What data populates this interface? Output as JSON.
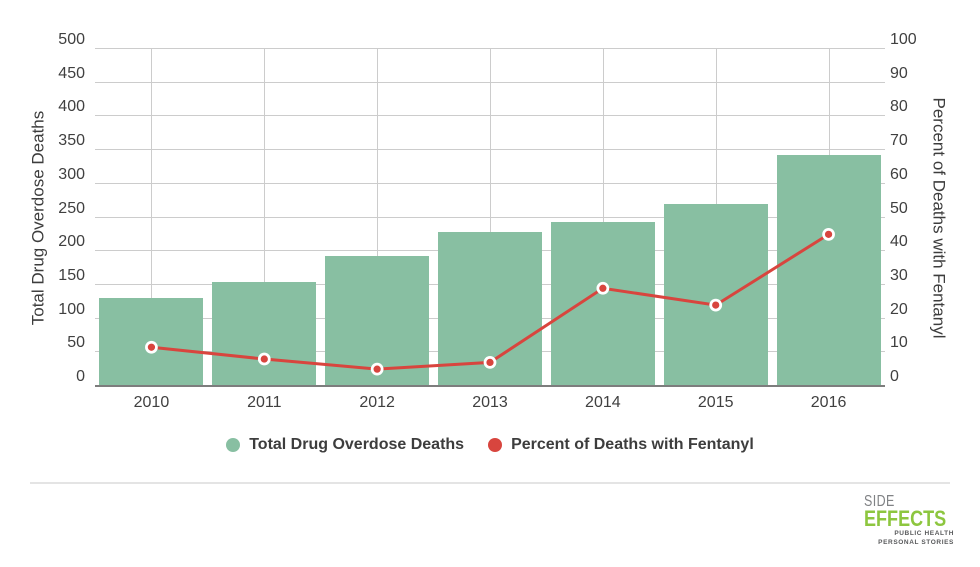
{
  "chart_data": {
    "type": "combo-bar-line",
    "categories": [
      "2010",
      "2011",
      "2012",
      "2013",
      "2014",
      "2015",
      "2016"
    ],
    "series": [
      {
        "name": "Total Drug Overdose Deaths",
        "type": "bar",
        "axis": "left",
        "color": "#88bfa2",
        "values": [
          130,
          155,
          193,
          229,
          244,
          270,
          343
        ]
      },
      {
        "name": "Percent of Deaths with Fentanyl",
        "type": "line",
        "axis": "right",
        "color": "#d8453e",
        "marker_stroke": "#ffffff",
        "values": [
          11.5,
          8,
          5,
          7,
          29,
          24,
          45
        ]
      }
    ],
    "left_axis": {
      "title": "Total Drug Overdose Deaths",
      "min": 0,
      "max": 500,
      "ticks": [
        0,
        50,
        100,
        150,
        200,
        250,
        300,
        350,
        400,
        450,
        500
      ]
    },
    "right_axis": {
      "title": "Percent of Deaths with Fentanyl",
      "min": 0,
      "max": 100,
      "ticks": [
        0,
        10,
        20,
        30,
        40,
        50,
        60,
        70,
        80,
        90,
        100
      ]
    },
    "grid": {
      "show": true,
      "color": "#cccccc",
      "baseline_color": "#7d7d7d"
    },
    "legend_position": "bottom",
    "text_color": "#404040"
  },
  "legend": {
    "items": [
      {
        "label": "Total Drug Overdose Deaths",
        "color": "#88bfa2"
      },
      {
        "label": "Percent of Deaths with Fentanyl",
        "color": "#d8453e"
      }
    ]
  },
  "footer": {
    "divider_color": "#e4e4e4",
    "logo": {
      "word1": "SIDE",
      "word2": "EFFECTS",
      "tagline1": "PUBLIC HEALTH",
      "tagline2": "PERSONAL STORIES",
      "green": "#8dc63f",
      "gray": "#808285",
      "dark": "#58595b"
    }
  }
}
